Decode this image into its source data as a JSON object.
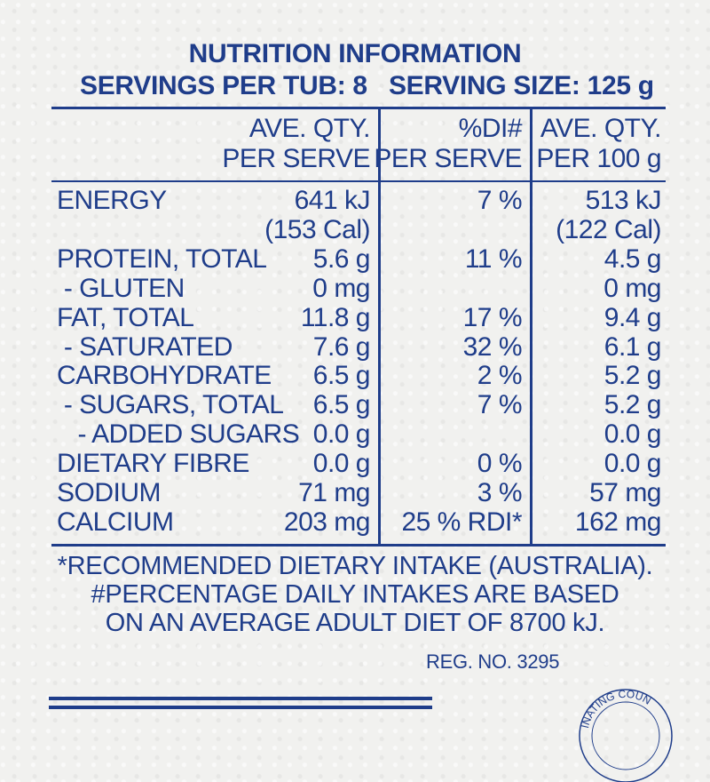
{
  "header": {
    "title": "NUTRITION INFORMATION",
    "servings": "SERVINGS PER TUB: 8",
    "serving_size": "SERVING SIZE: 125 g"
  },
  "columns": {
    "serve": [
      "AVE. QTY.",
      "PER SERVE"
    ],
    "di": [
      "%DI#",
      "PER SERVE"
    ],
    "per100": [
      "AVE. QTY.",
      "PER 100 g"
    ]
  },
  "rows": [
    {
      "label": "ENERGY",
      "serve": "641 kJ",
      "di": "7 %",
      "per100": "513 kJ"
    },
    {
      "label": "",
      "serve": "(153 Cal)",
      "di": "",
      "per100": "(122 Cal)"
    },
    {
      "label": "PROTEIN, TOTAL",
      "serve": "5.6 g",
      "di": "11 %",
      "per100": "4.5 g"
    },
    {
      "label": " - GLUTEN",
      "serve": "0 mg",
      "di": "",
      "per100": "0 mg"
    },
    {
      "label": "FAT, TOTAL",
      "serve": "11.8 g",
      "di": "17 %",
      "per100": "9.4 g"
    },
    {
      "label": " - SATURATED",
      "serve": "7.6 g",
      "di": "32 %",
      "per100": "6.1 g"
    },
    {
      "label": "CARBOHYDRATE",
      "serve": "6.5 g",
      "di": "2 %",
      "per100": "5.2 g"
    },
    {
      "label": " - SUGARS, TOTAL",
      "serve": "6.5 g",
      "di": "7 %",
      "per100": "5.2 g"
    },
    {
      "label": "   - ADDED SUGARS",
      "serve": "0.0 g",
      "di": "",
      "per100": "0.0 g"
    },
    {
      "label": "DIETARY FIBRE",
      "serve": "0.0 g",
      "di": "0 %",
      "per100": "0.0 g"
    },
    {
      "label": "SODIUM",
      "serve": "71 mg",
      "di": "3 %",
      "per100": "57 mg"
    },
    {
      "label": "CALCIUM",
      "serve": "203 mg",
      "di": "25 % RDI*",
      "per100": "162 mg"
    }
  ],
  "footnotes": [
    "*RECOMMENDED DIETARY INTAKE (AUSTRALIA).",
    "#PERCENTAGE DAILY INTAKES ARE BASED",
    "ON AN AVERAGE ADULT DIET OF 8700 kJ."
  ],
  "reg_no": "REG. NO. 3295",
  "seal_text": "INATING COUN",
  "colors": {
    "ink": "#1f3d8a",
    "paper": "#f1f1ef"
  }
}
